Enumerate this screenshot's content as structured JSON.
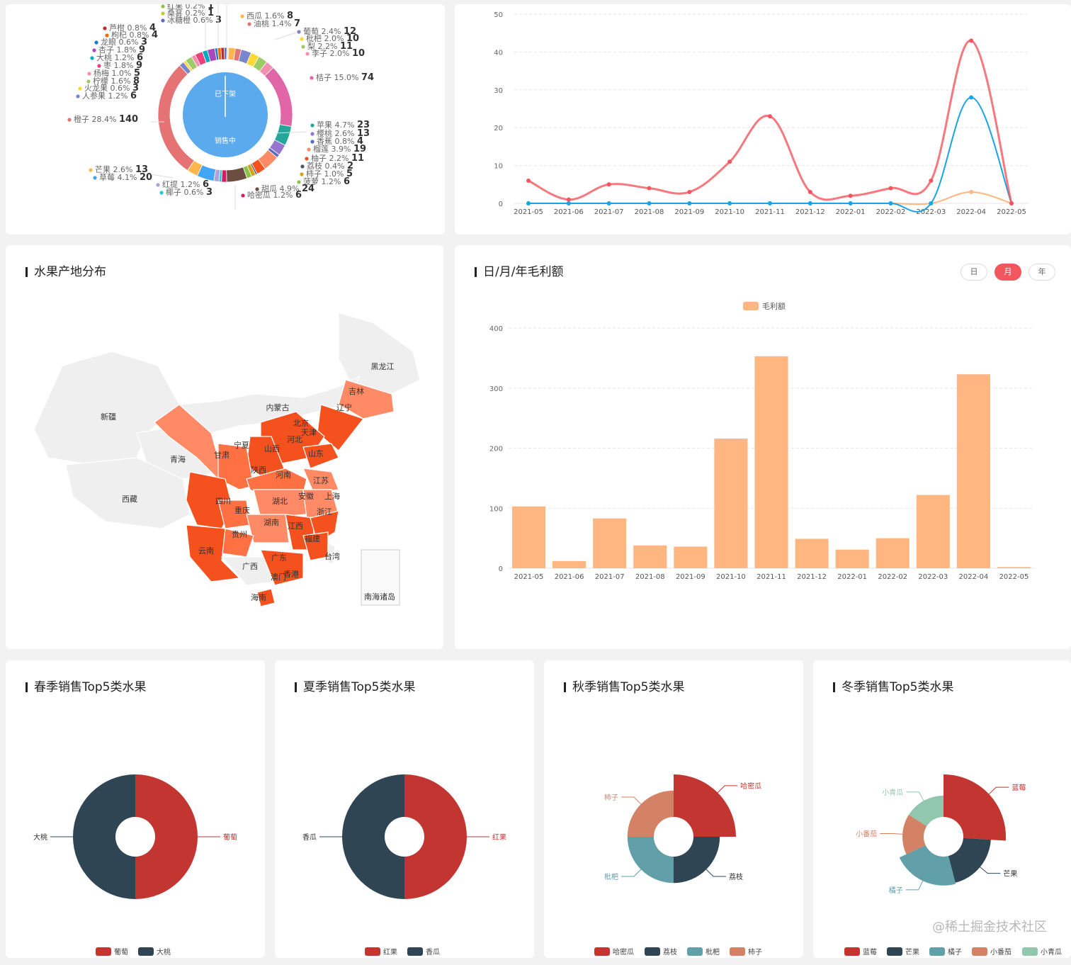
{
  "colors": {
    "accent": "#f2575f",
    "bar": "#ffb680",
    "line_red": "#f2575f",
    "line_blue": "#1aa3e8",
    "line_orange": "#ffb680",
    "map_dark": "#f4511e",
    "map_mid": "#ff7043",
    "map_light": "#ff8a65",
    "pie_red": "#c23531",
    "pie_navy": "#2f4554",
    "pie_teal": "#61a0a8",
    "pie_coral": "#d48265",
    "pie_mint": "#91c7ae"
  },
  "donut": {
    "inner_labels": [
      "已下架",
      "销售中"
    ],
    "items": [
      {
        "label": "红果 0.2% ",
        "value": "1",
        "color": "#8bc34a"
      },
      {
        "label": "桑葚 0.2% ",
        "value": "1",
        "color": "#c0ca33"
      },
      {
        "label": "冰糖橙 0.6% ",
        "value": "3",
        "color": "#5c6bc0"
      },
      {
        "label": "芦柑 0.8% ",
        "value": "4",
        "color": "#c62828"
      },
      {
        "label": "枸杞 0.8% ",
        "value": "4",
        "color": "#ef6c00"
      },
      {
        "label": "龙眼 0.6% ",
        "value": "3",
        "color": "#1976d2"
      },
      {
        "label": "杏子 1.8% ",
        "value": "9",
        "color": "#ab47bc"
      },
      {
        "label": "大桃 1.2% ",
        "value": "6",
        "color": "#00acc1"
      },
      {
        "label": "枣 1.8% ",
        "value": "9",
        "color": "#ec407a"
      },
      {
        "label": "杨梅 1.0% ",
        "value": "5",
        "color": "#f48fb1"
      },
      {
        "label": "柠檬 1.6% ",
        "value": "8",
        "color": "#9ccc65"
      },
      {
        "label": "火龙果 0.6% ",
        "value": "3",
        "color": "#fdd835"
      },
      {
        "label": "人参果 1.2% ",
        "value": "6",
        "color": "#7986cb"
      },
      {
        "label": "橙子 28.4% ",
        "value": "140",
        "color": "#e57373"
      },
      {
        "label": "芒果 2.6% ",
        "value": "13",
        "color": "#ffb74d"
      },
      {
        "label": "草莓 4.1% ",
        "value": "20",
        "color": "#42a5f5"
      },
      {
        "label": "红提 1.2% ",
        "value": "6",
        "color": "#b39ddb"
      },
      {
        "label": "椰子 0.6% ",
        "value": "3",
        "color": "#26c6da"
      },
      {
        "label": "西瓜 1.6% ",
        "value": "8",
        "color": "#ffb74d"
      },
      {
        "label": "油桃 1.4% ",
        "value": "7",
        "color": "#e57373"
      },
      {
        "label": "葡萄 2.4% ",
        "value": "12",
        "color": "#7986cb"
      },
      {
        "label": "枇杷 2.0% ",
        "value": "10",
        "color": "#fdd835"
      },
      {
        "label": "梨 2.2% ",
        "value": "11",
        "color": "#9ccc65"
      },
      {
        "label": "李子 2.0% ",
        "value": "10",
        "color": "#f48fb1"
      },
      {
        "label": "桔子 15.0% ",
        "value": "74",
        "color": "#e066a8"
      },
      {
        "label": "苹果 4.7% ",
        "value": "23",
        "color": "#26a69a"
      },
      {
        "label": "樱桃 2.6% ",
        "value": "13",
        "color": "#9575cd"
      },
      {
        "label": "香蕉 0.8% ",
        "value": "4",
        "color": "#5c6bc0"
      },
      {
        "label": "榴莲 3.9% ",
        "value": "19",
        "color": "#ff8a65"
      },
      {
        "label": "柚子 2.2% ",
        "value": "11",
        "color": "#f4511e"
      },
      {
        "label": "荔枝 0.4% ",
        "value": "2",
        "color": "#455a64"
      },
      {
        "label": "柿子 1.0% ",
        "value": "5",
        "color": "#d4a017"
      },
      {
        "label": "菠萝 1.2% ",
        "value": "6",
        "color": "#8bc34a"
      },
      {
        "label": "甜瓜 4.9% ",
        "value": "24",
        "color": "#6d4c41"
      },
      {
        "label": "哈密瓜 1.2% ",
        "value": "6",
        "color": "#d81b60"
      }
    ]
  },
  "line_chart": {
    "y_ticks": [
      "0",
      "10",
      "20",
      "30",
      "40",
      "50"
    ],
    "x": [
      "2021-05",
      "2021-06",
      "2021-07",
      "2021-08",
      "2021-09",
      "2021-10",
      "2021-11",
      "2021-12",
      "2022-01",
      "2022-02",
      "2022-03",
      "2022-04",
      "2022-05"
    ],
    "series": [
      {
        "values": [
          6,
          1,
          5,
          4,
          3,
          11,
          23,
          3,
          2,
          4,
          6,
          43,
          0
        ]
      },
      {
        "values": [
          0,
          0,
          0,
          0,
          0,
          0,
          0,
          0,
          0,
          0,
          0,
          28,
          0
        ]
      },
      {
        "values": [
          0,
          0,
          0,
          0,
          0,
          0,
          0,
          0,
          0,
          0,
          0,
          3,
          0
        ]
      }
    ]
  },
  "map": {
    "title": "水果产地分布",
    "regions": [
      "黑龙江",
      "吉林",
      "辽宁",
      "内蒙古",
      "新疆",
      "北京",
      "天津",
      "河北",
      "宁夏",
      "山西",
      "山东",
      "甘肃",
      "青海",
      "陕西",
      "河南",
      "江苏",
      "上海",
      "西藏",
      "四川",
      "安徽",
      "湖北",
      "重庆",
      "浙江",
      "湖南",
      "江西",
      "贵州",
      "福建",
      "台湾",
      "云南",
      "广西",
      "广东",
      "香港",
      "澳门",
      "海南",
      "南海诸岛"
    ]
  },
  "bar_chart": {
    "title": "日/月/年毛利额",
    "buttons": [
      "日",
      "月",
      "年"
    ],
    "active": "月",
    "chart_data": {
      "type": "bar",
      "legend": "毛利额",
      "categories": [
        "2021-05",
        "2021-06",
        "2021-07",
        "2021-08",
        "2021-09",
        "2021-10",
        "2021-11",
        "2021-12",
        "2022-01",
        "2022-02",
        "2022-03",
        "2022-04",
        "2022-05"
      ],
      "values": [
        103,
        12,
        83,
        38,
        36,
        216,
        353,
        49,
        31,
        50,
        122,
        323,
        2
      ],
      "y_ticks": [
        "0",
        "100",
        "200",
        "300",
        "400"
      ],
      "ylim": [
        0,
        400
      ]
    }
  },
  "seasons": [
    {
      "title": "春季销售Top5类水果",
      "items": [
        {
          "name": "葡萄",
          "value": 50
        },
        {
          "name": "大桃",
          "value": 50
        }
      ]
    },
    {
      "title": "夏季销售Top5类水果",
      "items": [
        {
          "name": "红果",
          "value": 50
        },
        {
          "name": "香瓜",
          "value": 50
        }
      ]
    },
    {
      "title": "秋季销售Top5类水果",
      "items": [
        {
          "name": "哈密瓜",
          "value": 25,
          "r": 1.0
        },
        {
          "name": "荔枝",
          "value": 25,
          "r": 0.62
        },
        {
          "name": "枇杷",
          "value": 25,
          "r": 0.62
        },
        {
          "name": "柿子",
          "value": 25,
          "r": 0.62
        }
      ]
    },
    {
      "title": "冬季销售Top5类水果",
      "items": [
        {
          "name": "蓝莓",
          "value": 26,
          "r": 1.0
        },
        {
          "name": "芒果",
          "value": 20,
          "r": 0.65
        },
        {
          "name": "橘子",
          "value": 22,
          "r": 0.68
        },
        {
          "name": "小番茄",
          "value": 16,
          "r": 0.5
        },
        {
          "name": "小青瓜",
          "value": 16,
          "r": 0.5
        }
      ]
    }
  ],
  "watermark": "@稀土掘金技术社区"
}
